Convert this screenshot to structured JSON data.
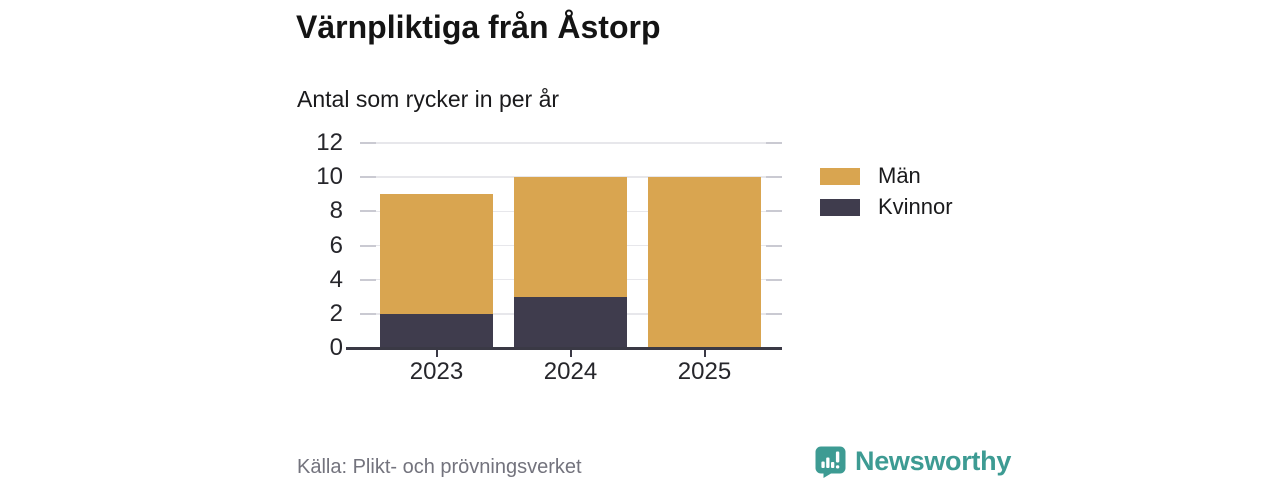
{
  "header": {
    "title": "Värnpliktiga från Åstorp",
    "subtitle": "Antal som rycker in per år"
  },
  "footer": {
    "source": "Källa: Plikt- och prövningsverket",
    "brand_name": "Newsworthy",
    "brand_icon": "newsworthy-speech-bubble-barchart-icon"
  },
  "colors": {
    "men": "#D9A550",
    "women": "#3F3C4D",
    "axis": "#3A3945",
    "grid": "#E7E7EB",
    "side_tick": "#CACAD2",
    "tick_text": "#26262B",
    "text": "#141414",
    "muted_text": "#73737D",
    "brand_teal": "#3D9B93",
    "background": "#FFFFFF"
  },
  "chart_data": {
    "type": "bar",
    "stacked": true,
    "title": "Värnpliktiga från Åstorp",
    "subtitle": "Antal som rycker in per år",
    "source": "Källa: Plikt- och prövningsverket",
    "categories": [
      "2023",
      "2024",
      "2025"
    ],
    "series": [
      {
        "name": "Män",
        "values": [
          7,
          7,
          10
        ],
        "color": "#D9A550"
      },
      {
        "name": "Kvinnor",
        "values": [
          2,
          3,
          0
        ],
        "color": "#3F3C4D"
      }
    ],
    "stack_order_bottom_to_top": [
      "Kvinnor",
      "Män"
    ],
    "stack_totals": [
      9,
      10,
      10
    ],
    "xlabel": "",
    "ylabel": "",
    "ylim": [
      0,
      12
    ],
    "yticks": [
      0,
      2,
      4,
      6,
      8,
      10,
      12
    ],
    "grid": true,
    "legend_position": "right"
  }
}
